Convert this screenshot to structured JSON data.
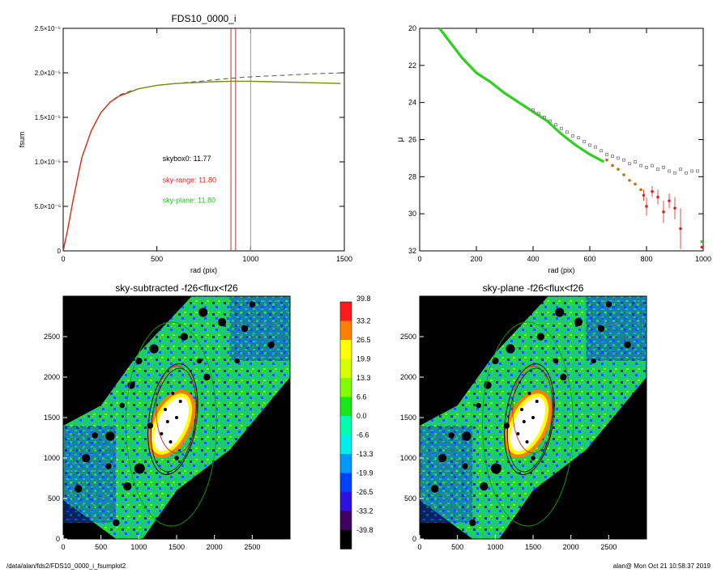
{
  "colors": {
    "axis": "#000000",
    "model_dash": "#555555",
    "curve_red": "#d03010",
    "curve_green": "#7a8a10",
    "vline_red": "#d03030",
    "vline_gray": "#999999",
    "label_red": "#e02020",
    "label_green": "#20c020",
    "points_gray": "#777777",
    "points_green": "#30d020",
    "points_orange": "#c07000",
    "points_red": "#e02020",
    "ellipse_green": "#10a010",
    "ellipse_red": "#d02020",
    "ellipse_black": "#000000"
  },
  "chart_data": [
    {
      "type": "line",
      "title": "FDS10_0000_i",
      "xlabel": "rad (pix)",
      "ylabel": "fsum",
      "xlim": [
        0,
        1500
      ],
      "ylim": [
        0,
        2.5e-05
      ],
      "xticks": [
        0,
        500,
        1000,
        1500
      ],
      "yticks": [
        {
          "value": 0,
          "label": "0"
        },
        {
          "value": 5e-06,
          "label": "5.0×10⁻⁶"
        },
        {
          "value": 1e-05,
          "label": "1.0×10⁻⁵"
        },
        {
          "value": 1.5e-05,
          "label": "1.5×10⁻⁵"
        },
        {
          "value": 2e-05,
          "label": "2.0×10⁻⁵"
        },
        {
          "value": 2.5e-05,
          "label": "2.5×10⁻⁵"
        }
      ],
      "series": [
        {
          "style": "dashed",
          "x": [
            0,
            25,
            50,
            75,
            100,
            150,
            200,
            250,
            300,
            350,
            400,
            500,
            600,
            700,
            800,
            900,
            1000,
            1100,
            1200,
            1300,
            1400,
            1500
          ],
          "y": [
            0,
            2.5e-06,
            5.4e-06,
            8e-06,
            1.05e-05,
            1.35e-05,
            1.55e-05,
            1.67e-05,
            1.75e-05,
            1.79e-05,
            1.82e-05,
            1.86e-05,
            1.88e-05,
            1.9e-05,
            1.92e-05,
            1.94e-05,
            1.955e-05,
            1.965e-05,
            1.975e-05,
            1.985e-05,
            1.995e-05,
            2e-05
          ]
        },
        {
          "style": "red",
          "x": [
            0,
            25,
            50,
            75,
            100,
            150,
            200,
            250,
            300,
            350
          ],
          "y": [
            0,
            2.5e-06,
            5.4e-06,
            8e-06,
            1.05e-05,
            1.35e-05,
            1.55e-05,
            1.67e-05,
            1.74e-05,
            1.78e-05
          ]
        },
        {
          "style": "green",
          "x": [
            340,
            400,
            500,
            600,
            700,
            800,
            900,
            1000,
            1100,
            1200,
            1300,
            1400,
            1480
          ],
          "y": [
            1.77e-05,
            1.82e-05,
            1.86e-05,
            1.88e-05,
            1.89e-05,
            1.9e-05,
            1.905e-05,
            1.905e-05,
            1.9e-05,
            1.895e-05,
            1.89e-05,
            1.885e-05,
            1.88e-05
          ]
        }
      ],
      "vlines": [
        {
          "x": 895,
          "style": "red"
        },
        {
          "x": 920,
          "style": "red"
        },
        {
          "x": 1000,
          "style": "gray"
        }
      ],
      "annotations": [
        {
          "text": "skybox0: 11.77",
          "style": "black",
          "x": 530,
          "y": 1.01e-05
        },
        {
          "text": "sky-range: 11.80",
          "style": "red",
          "x": 530,
          "y": 7.7e-06
        },
        {
          "text": "sky-plane: 11.80",
          "style": "green",
          "x": 530,
          "y": 5.4e-06
        }
      ]
    },
    {
      "type": "scatter",
      "title": "",
      "xlabel": "rad (pix)",
      "ylabel": "μ",
      "xlim": [
        0,
        1000
      ],
      "ylim": [
        32,
        20
      ],
      "xticks": [
        0,
        200,
        400,
        600,
        800,
        1000
      ],
      "yticks": [
        20,
        22,
        24,
        26,
        28,
        30,
        32
      ],
      "green_curve": {
        "x": [
          70,
          100,
          150,
          200,
          250,
          300,
          350,
          400,
          450,
          500,
          550,
          600,
          650
        ],
        "y": [
          20.0,
          20.6,
          21.6,
          22.4,
          22.9,
          23.5,
          24.0,
          24.5,
          25.0,
          25.7,
          26.3,
          26.8,
          27.2
        ]
      },
      "gray_points": {
        "x": [
          400,
          420,
          440,
          460,
          480,
          500,
          520,
          540,
          560,
          580,
          600,
          620,
          640,
          660,
          680,
          700,
          720,
          740,
          760,
          780,
          800,
          820,
          840,
          860,
          880,
          900,
          920,
          940,
          960,
          980
        ],
        "y": [
          24.4,
          24.6,
          24.8,
          25.0,
          25.2,
          25.4,
          25.6,
          25.8,
          25.9,
          26.1,
          26.3,
          26.4,
          26.6,
          26.8,
          26.9,
          27.0,
          27.1,
          27.3,
          27.2,
          27.4,
          27.5,
          27.4,
          27.6,
          27.5,
          27.7,
          27.8,
          27.6,
          27.8,
          27.7,
          27.7
        ]
      },
      "orange_points": {
        "x": [
          660,
          680,
          700,
          720,
          740,
          760,
          780
        ],
        "y": [
          27.1,
          27.4,
          27.6,
          27.9,
          28.2,
          28.4,
          28.7
        ]
      },
      "red_points": {
        "x": [
          790,
          800,
          820,
          840,
          860,
          880,
          900,
          920
        ],
        "y": [
          29.0,
          29.6,
          28.8,
          29.1,
          29.9,
          29.3,
          29.7,
          30.8
        ],
        "err": [
          0.3,
          0.5,
          0.3,
          0.4,
          0.6,
          0.4,
          0.6,
          1.1
        ]
      },
      "edge_markers": [
        {
          "x": 995,
          "y": 31.5,
          "style": "green"
        },
        {
          "x": 995,
          "y": 31.8,
          "style": "red"
        }
      ]
    },
    {
      "type": "heatmap",
      "title": "sky-subtracted -f26<flux<f26",
      "xlim": [
        0,
        3000
      ],
      "ylim": [
        0,
        3000
      ],
      "xticks": [
        0,
        500,
        1000,
        1500,
        2000,
        2500
      ],
      "yticks": [
        0,
        500,
        1000,
        1500,
        2000,
        2500
      ]
    },
    {
      "type": "heatmap",
      "title": "sky-plane -f26<flux<f26",
      "xlim": [
        0,
        3000
      ],
      "ylim": [
        0,
        3000
      ],
      "xticks": [
        0,
        500,
        1000,
        1500,
        2000,
        2500
      ],
      "yticks": [
        0,
        500,
        1000,
        1500,
        2000,
        2500
      ]
    }
  ],
  "colorbar": {
    "labels": [
      "39.8",
      "33.2",
      "26.5",
      "19.9",
      "13.3",
      "6.6",
      "0.0",
      "-6.6",
      "-13.3",
      "-19.9",
      "-26.5",
      "-33.2",
      "-39.8"
    ],
    "colors": [
      "#ff1a1a",
      "#ff7f00",
      "#ffff00",
      "#d8ff00",
      "#80ff00",
      "#18e818",
      "#00ffaa",
      "#00eeee",
      "#0099ff",
      "#0040ff",
      "#3010e0",
      "#400060",
      "#000000"
    ]
  },
  "footer": {
    "left": "/data/alan/fds2/FDS10_0000_i_fsumplot2",
    "right": "alan@   Mon Oct 21 10:58:37 2019"
  }
}
